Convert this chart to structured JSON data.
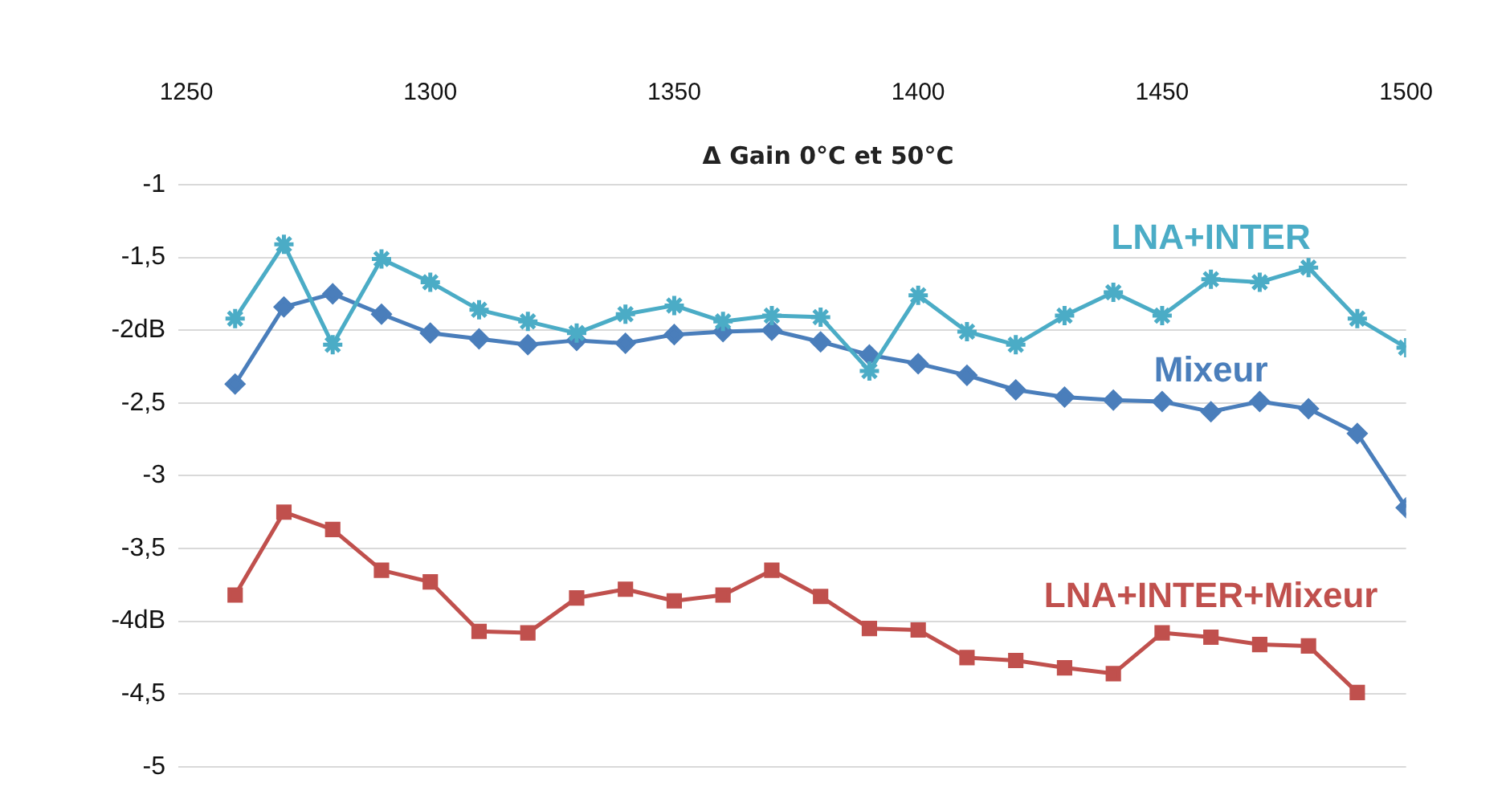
{
  "chart_data": {
    "type": "line",
    "title": "Δ Gain 0°C et 50°C",
    "x": [
      1260,
      1270,
      1280,
      1290,
      1300,
      1310,
      1320,
      1330,
      1340,
      1350,
      1360,
      1370,
      1380,
      1390,
      1400,
      1410,
      1420,
      1430,
      1440,
      1450,
      1460,
      1470,
      1480,
      1490,
      1500
    ],
    "series": [
      {
        "name": "LNA+INTER",
        "color": "#4bacc6",
        "marker": "cross",
        "values": [
          -1.92,
          -1.41,
          -2.1,
          -1.51,
          -1.67,
          -1.86,
          -1.94,
          -2.02,
          -1.89,
          -1.83,
          -1.94,
          -1.9,
          -1.91,
          -2.28,
          -1.76,
          -2.01,
          -2.1,
          -1.9,
          -1.74,
          -1.9,
          -1.65,
          -1.67,
          -1.57,
          -1.92,
          -2.12
        ]
      },
      {
        "name": "Mixeur",
        "color": "#4a7ebb",
        "marker": "diamond",
        "values": [
          -2.37,
          -1.84,
          -1.75,
          -1.89,
          -2.02,
          -2.06,
          -2.1,
          -2.07,
          -2.09,
          -2.03,
          -2.01,
          -2.0,
          -2.08,
          -2.17,
          -2.23,
          -2.31,
          -2.41,
          -2.46,
          -2.48,
          -2.49,
          -2.56,
          -2.49,
          -2.54,
          -2.71,
          -3.22
        ]
      },
      {
        "name": "LNA+INTER+Mixeur",
        "color": "#c0504d",
        "marker": "square",
        "values": [
          -3.82,
          -3.25,
          -3.37,
          -3.65,
          -3.73,
          -4.07,
          -4.08,
          -3.84,
          -3.78,
          -3.86,
          -3.82,
          -3.65,
          -3.83,
          -4.05,
          -4.06,
          -4.25,
          -4.27,
          -4.32,
          -4.36,
          -4.08,
          -4.11,
          -4.16,
          -4.17,
          -4.49,
          null
        ]
      }
    ],
    "xlim": [
      1250,
      1500
    ],
    "xticks": [
      1250,
      1300,
      1350,
      1400,
      1450,
      1500
    ],
    "ylim": [
      -5,
      -1
    ],
    "yticks": [
      -1,
      {
        "value": -1.5,
        "label": "-1,5"
      },
      {
        "value": -2,
        "label": "-2dB"
      },
      {
        "value": -2.5,
        "label": "-2,5"
      },
      -3,
      {
        "value": -3.5,
        "label": "-3,5"
      },
      {
        "value": -4,
        "label": "-4dB"
      },
      {
        "value": -4.5,
        "label": "-4,5"
      },
      -5
    ],
    "grid": "y",
    "legend": false
  }
}
